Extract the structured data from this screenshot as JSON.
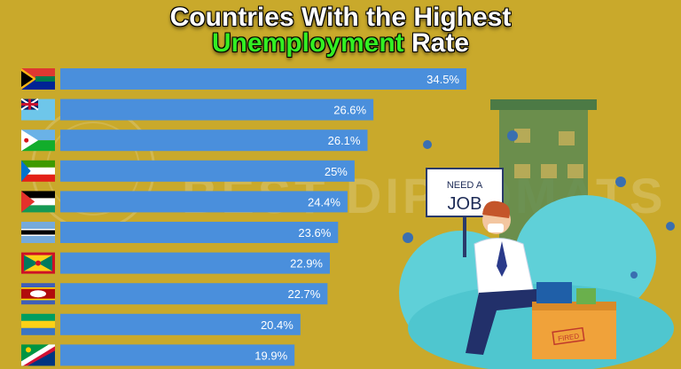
{
  "header": {
    "title_line1": "Countries With the Highest",
    "title_highlight": "Unemployment",
    "title_rest": "Rate"
  },
  "watermark": "BEST DIPLOMATS",
  "illustration": {
    "sign_line1": "NEED A",
    "sign_line2": "JOB",
    "box_stamp": "FIRED"
  },
  "colors": {
    "background": "#c9a92b",
    "bar": "#4a8fdc",
    "highlight_text": "#33ee22"
  },
  "chart_data": {
    "type": "bar",
    "orientation": "horizontal",
    "title": "Countries With the Highest Unemployment Rate",
    "categories": [
      "South Africa flag-icon",
      "Tuvalu flag-icon",
      "Djibouti flag-icon",
      "Equatorial Guinea flag-icon",
      "Palestine flag-icon",
      "Botswana flag-icon",
      "Grenada flag-icon",
      "Eswatini flag-icon",
      "Gabon flag-icon",
      "Namibia flag-icon"
    ],
    "values": [
      34.5,
      26.6,
      26.1,
      25,
      24.4,
      23.6,
      22.9,
      22.7,
      20.4,
      19.9
    ],
    "labels": [
      "34.5%",
      "26.6%",
      "26.1%",
      "25%",
      "24.4%",
      "23.6%",
      "22.9%",
      "22.7%",
      "20.4%",
      "19.9%"
    ],
    "unit": "%",
    "grid": false,
    "legend": "none"
  }
}
